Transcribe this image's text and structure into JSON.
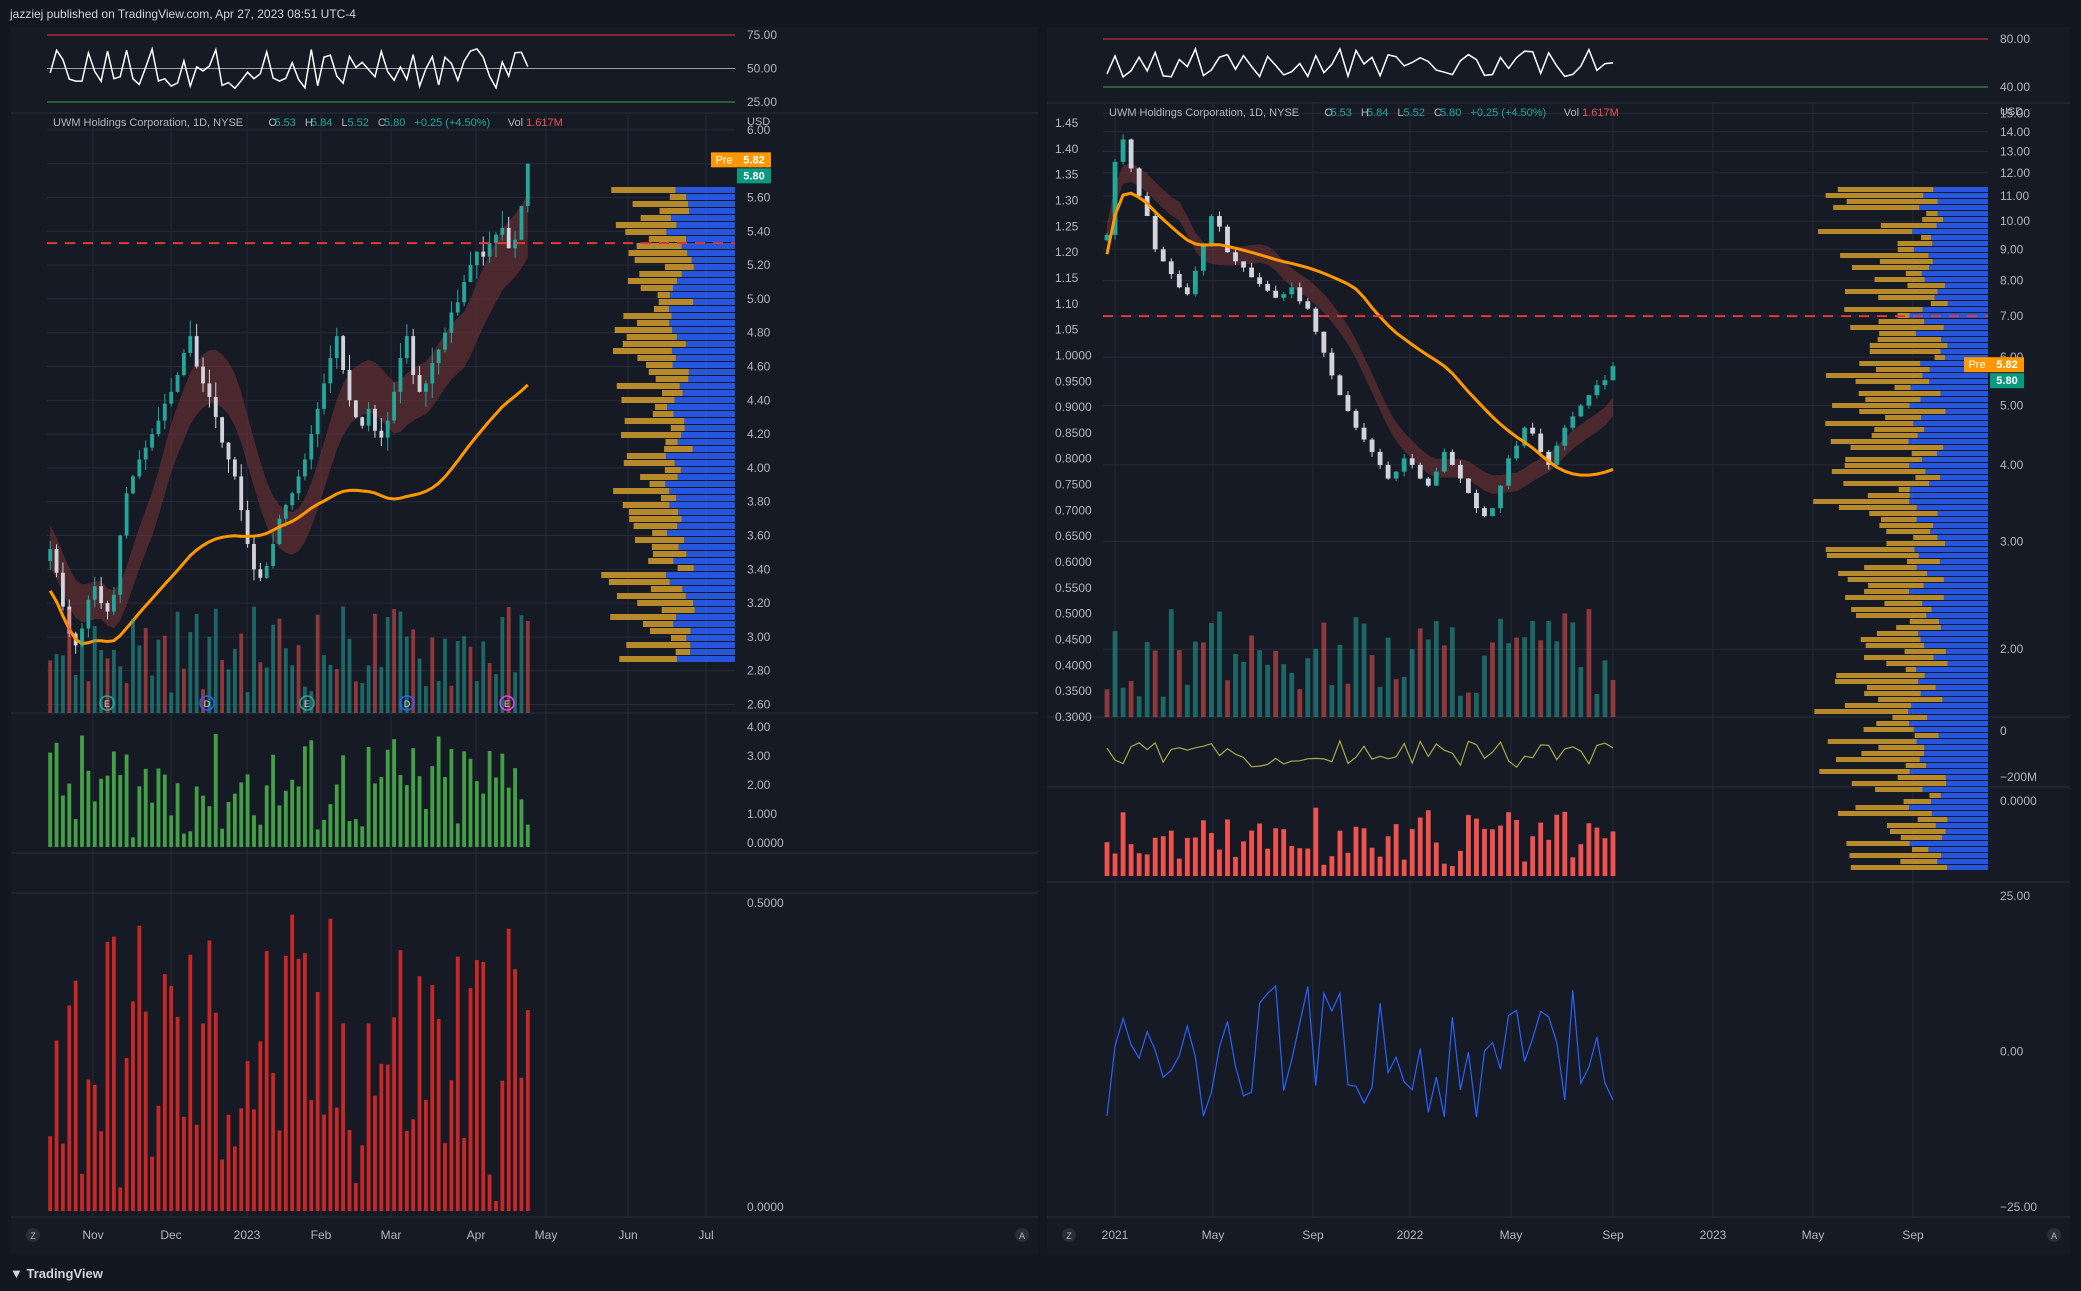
{
  "header": {
    "publish_note": "jazziej published on TradingView.com, Apr 27, 2023 08:51 UTC-4"
  },
  "footer": {
    "brand": "TradingView"
  },
  "colors": {
    "bg": "#131722",
    "panel": "#161a25",
    "grid": "#262b37",
    "text": "#b2b5be",
    "up": "#26a69a",
    "down": "#ef5350",
    "gold": "#c8962c",
    "blue": "#2962ff",
    "orange": "#ff9800",
    "pink": "#ff80ab",
    "cyan": "#00bcd4",
    "purple": "#9575cd"
  },
  "chart_data": [
    {
      "id": "left",
      "type": "candlestick",
      "legend": {
        "name": "UWM Holdings Corporation, 1D, NYSE",
        "o_label": "O",
        "o": "5.53",
        "h_label": "H",
        "h": "5.84",
        "l_label": "L",
        "l": "5.52",
        "c_label": "C",
        "c": "5.80",
        "chg": "+0.25 (+4.50%)",
        "vol_label": "Vol",
        "vol": "1.617M"
      },
      "currency": "USD",
      "price_ticks": [
        "6.00",
        "5.80",
        "5.60",
        "5.40",
        "5.20",
        "5.00",
        "4.80",
        "4.60",
        "4.40",
        "4.20",
        "4.00",
        "3.80",
        "3.60",
        "3.40",
        "3.20",
        "3.00",
        "2.80",
        "2.60"
      ],
      "ylim": [
        2.55,
        6.1
      ],
      "x_ticks": [
        "Nov",
        "Dec",
        "2023",
        "Feb",
        "Mar",
        "Apr",
        "May",
        "Jun",
        "Jul"
      ],
      "tags": [
        {
          "label": "Pre",
          "value": "5.82"
        },
        {
          "label": "",
          "value": "5.80"
        }
      ],
      "events": [
        "E",
        "D",
        "E",
        "D",
        "E"
      ],
      "rsi": {
        "ticks": [
          "75.00",
          "50.00",
          "25.00"
        ]
      },
      "pane2": {
        "ticks": [
          "4.00",
          "3.00",
          "2.00",
          "1.000",
          "0.0000"
        ]
      },
      "pane3": {
        "ticks": [
          "0.5000",
          "0.0000"
        ]
      },
      "close": [
        3.52,
        3.38,
        3.18,
        3.02,
        2.95,
        3.05,
        3.22,
        3.3,
        3.2,
        3.15,
        3.25,
        3.6,
        3.85,
        3.95,
        4.05,
        4.12,
        4.2,
        4.28,
        4.38,
        4.45,
        4.55,
        4.68,
        4.78,
        4.6,
        4.5,
        4.42,
        4.3,
        4.15,
        4.05,
        3.95,
        3.75,
        3.55,
        3.4,
        3.35,
        3.42,
        3.55,
        3.7,
        3.78,
        3.85,
        3.95,
        4.05,
        4.2,
        4.35,
        4.5,
        4.65,
        4.78,
        4.58,
        4.4,
        4.3,
        4.25,
        4.35,
        4.22,
        4.18,
        4.28,
        4.45,
        4.65,
        4.78,
        4.55,
        4.45,
        4.5,
        4.62,
        4.7,
        4.8,
        4.92,
        4.98,
        5.1,
        5.2,
        5.28,
        5.25,
        5.33,
        5.38,
        5.42,
        5.3,
        5.35,
        5.55,
        5.8
      ]
    },
    {
      "id": "right",
      "type": "candlestick",
      "legend": {
        "name": "UWM Holdings Corporation, 1D, NYSE",
        "o_label": "O",
        "o": "5.53",
        "h_label": "H",
        "h": "5.84",
        "l_label": "L",
        "l": "5.52",
        "c_label": "C",
        "c": "5.80",
        "chg": "+0.25 (+4.50%)",
        "vol_label": "Vol",
        "vol": "1.617M"
      },
      "currency": "USD",
      "scale": "log",
      "left_ticks": [
        "1.45",
        "1.40",
        "1.35",
        "1.30",
        "1.25",
        "1.20",
        "1.15",
        "1.10",
        "1.05",
        "1.0000",
        "0.9500",
        "0.9000",
        "0.8500",
        "0.8000",
        "0.7500",
        "0.7000",
        "0.6500",
        "0.6000",
        "0.5500",
        "0.5000",
        "0.4500",
        "0.4000",
        "0.3500",
        "0.3000"
      ],
      "price_ticks": [
        "15.00",
        "14.00",
        "13.00",
        "12.00",
        "11.00",
        "10.00",
        "9.00",
        "8.00",
        "7.00",
        "6.00",
        "5.00",
        "4.00",
        "3.00",
        "2.00"
      ],
      "ylim": [
        1.55,
        15.6
      ],
      "x_ticks": [
        "2021",
        "May",
        "Sep",
        "2022",
        "May",
        "Sep",
        "2023",
        "May",
        "Sep"
      ],
      "tags": [
        {
          "label": "Pre",
          "value": "5.82"
        },
        {
          "label": "",
          "value": "5.80"
        }
      ],
      "rsi": {
        "ticks": [
          "80.00",
          "40.00"
        ]
      },
      "pane2": {
        "ticks": [
          "0",
          "−200M"
        ]
      },
      "pane3": {
        "ticks": [
          "0.0000"
        ]
      },
      "pane4": {
        "ticks": [
          "25.00",
          "0.00",
          "−25.00"
        ]
      },
      "close": [
        9.5,
        12.5,
        13.6,
        12.2,
        11.0,
        10.2,
        9.0,
        8.6,
        8.2,
        7.8,
        7.6,
        8.3,
        9.2,
        10.2,
        9.8,
        8.9,
        8.6,
        8.4,
        8.1,
        7.9,
        7.7,
        7.5,
        7.6,
        7.8,
        7.4,
        7.2,
        6.6,
        6.1,
        5.6,
        5.2,
        4.9,
        4.6,
        4.4,
        4.2,
        4.0,
        3.8,
        3.9,
        4.1,
        4.0,
        3.8,
        3.7,
        3.9,
        4.2,
        4.0,
        3.8,
        3.6,
        3.4,
        3.3,
        3.4,
        3.7,
        4.1,
        4.3,
        4.6,
        4.5,
        4.2,
        4.0,
        4.3,
        4.6,
        4.8,
        5.0,
        5.2,
        5.4,
        5.5,
        5.8
      ]
    }
  ]
}
